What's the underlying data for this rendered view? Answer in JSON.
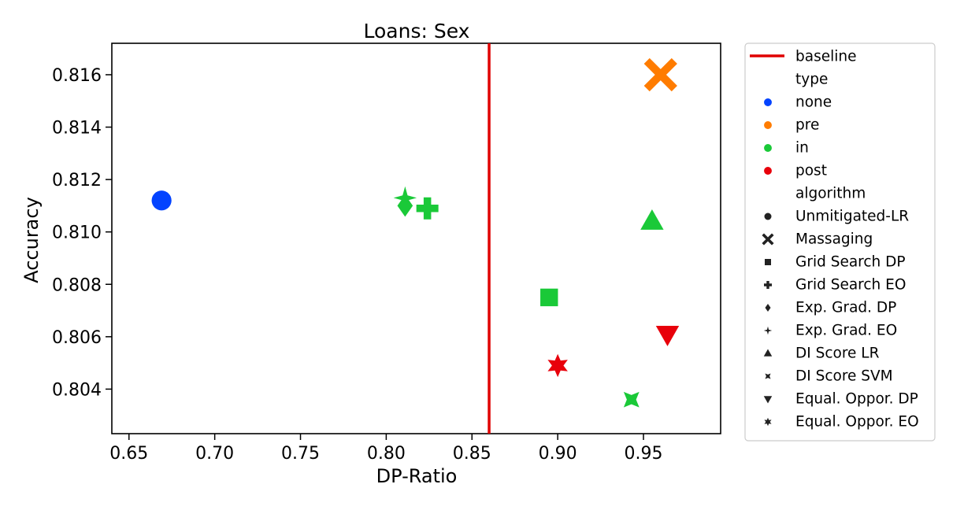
{
  "chart_data": {
    "type": "scatter",
    "title": "Loans: Sex",
    "xlabel": "DP-Ratio",
    "ylabel": "Accuracy",
    "xlim": [
      0.64,
      0.995
    ],
    "ylim": [
      0.8023,
      0.8172
    ],
    "xticks": [
      "0.65",
      "0.70",
      "0.75",
      "0.80",
      "0.85",
      "0.90",
      "0.95"
    ],
    "yticks": [
      "0.804",
      "0.806",
      "0.808",
      "0.810",
      "0.812",
      "0.814",
      "0.816"
    ],
    "grid": false,
    "baseline": {
      "label": "baseline",
      "x": 0.86,
      "color": "#e00000"
    },
    "type_colors": {
      "none": "#0343ff",
      "pre": "#ff7c00",
      "in": "#1ac938",
      "post": "#e8000b"
    },
    "points": [
      {
        "algorithm": "Unmitigated-LR",
        "type": "none",
        "x": 0.669,
        "y": 0.8112,
        "marker": "circle"
      },
      {
        "algorithm": "Massaging",
        "type": "pre",
        "x": 0.96,
        "y": 0.816,
        "marker": "x"
      },
      {
        "algorithm": "Grid Search DP",
        "type": "in",
        "x": 0.895,
        "y": 0.8075,
        "marker": "square"
      },
      {
        "algorithm": "Grid Search EO",
        "type": "in",
        "x": 0.824,
        "y": 0.8109,
        "marker": "plus"
      },
      {
        "algorithm": "Exp. Grad. DP",
        "type": "in",
        "x": 0.811,
        "y": 0.811,
        "marker": "diamond"
      },
      {
        "algorithm": "Exp. Grad. EO",
        "type": "in",
        "x": 0.811,
        "y": 0.8113,
        "marker": "star4"
      },
      {
        "algorithm": "DI Score LR",
        "type": "in",
        "x": 0.955,
        "y": 0.8104,
        "marker": "triangle-up"
      },
      {
        "algorithm": "DI Score SVM",
        "type": "in",
        "x": 0.943,
        "y": 0.8036,
        "marker": "star4x"
      },
      {
        "algorithm": "Equal. Oppor. DP",
        "type": "post",
        "x": 0.964,
        "y": 0.8061,
        "marker": "triangle-down"
      },
      {
        "algorithm": "Equal. Oppor. EO",
        "type": "post",
        "x": 0.9,
        "y": 0.8049,
        "marker": "star6"
      }
    ],
    "legend": {
      "placement": "outside-right",
      "entries": [
        {
          "label": "baseline",
          "kind": "line",
          "color": "#e00000"
        },
        {
          "label": "type",
          "kind": "header"
        },
        {
          "label": "none",
          "kind": "marker",
          "marker": "circle",
          "color": "#0343ff"
        },
        {
          "label": "pre",
          "kind": "marker",
          "marker": "circle",
          "color": "#ff7c00"
        },
        {
          "label": "in",
          "kind": "marker",
          "marker": "circle",
          "color": "#1ac938"
        },
        {
          "label": "post",
          "kind": "marker",
          "marker": "circle",
          "color": "#e8000b"
        },
        {
          "label": "algorithm",
          "kind": "header"
        },
        {
          "label": "Unmitigated-LR",
          "kind": "marker",
          "marker": "circle",
          "color": "#222222"
        },
        {
          "label": "Massaging",
          "kind": "marker",
          "marker": "x",
          "color": "#222222"
        },
        {
          "label": "Grid Search DP",
          "kind": "marker",
          "marker": "square",
          "color": "#222222"
        },
        {
          "label": "Grid Search EO",
          "kind": "marker",
          "marker": "plus",
          "color": "#222222"
        },
        {
          "label": "Exp. Grad. DP",
          "kind": "marker",
          "marker": "diamond",
          "color": "#222222"
        },
        {
          "label": "Exp. Grad. EO",
          "kind": "marker",
          "marker": "star4",
          "color": "#222222"
        },
        {
          "label": "DI Score LR",
          "kind": "marker",
          "marker": "triangle-up",
          "color": "#222222"
        },
        {
          "label": "DI Score SVM",
          "kind": "marker",
          "marker": "star4x",
          "color": "#222222"
        },
        {
          "label": "Equal. Oppor. DP",
          "kind": "marker",
          "marker": "triangle-down",
          "color": "#222222"
        },
        {
          "label": "Equal. Oppor. EO",
          "kind": "marker",
          "marker": "star6",
          "color": "#222222"
        }
      ]
    }
  }
}
